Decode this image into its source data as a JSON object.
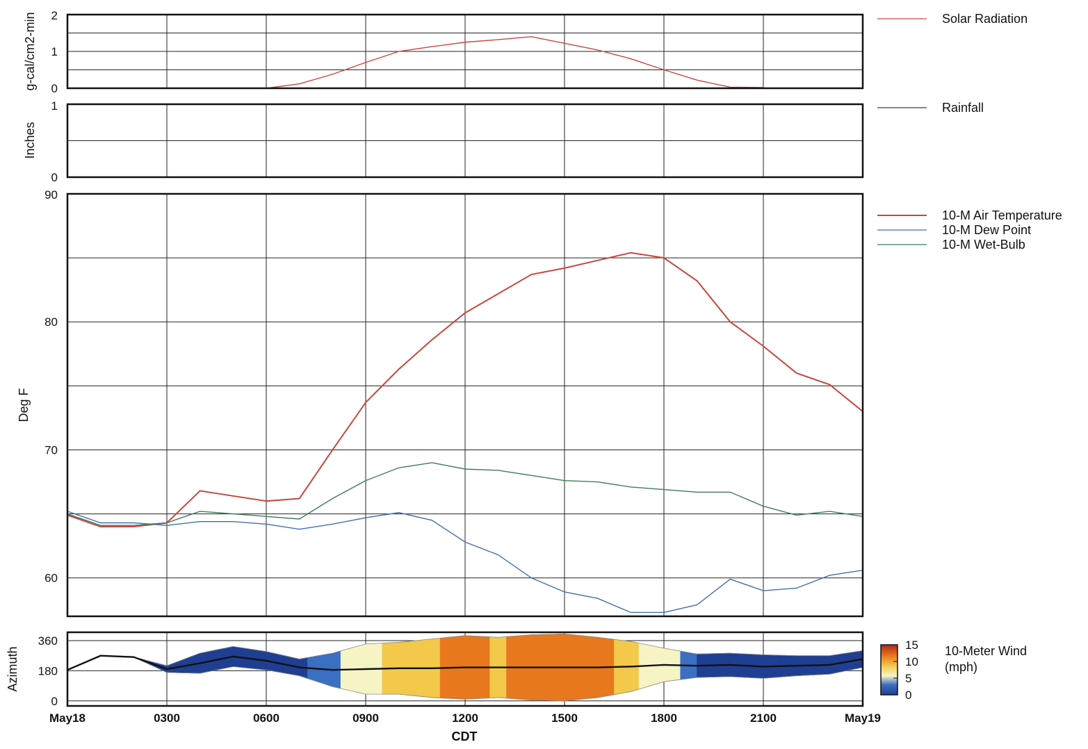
{
  "chart_data": [
    {
      "type": "line",
      "panel": "solar",
      "ylabel": "g-cal/cm2-min",
      "ylim": [
        0,
        2
      ],
      "yticks": [
        "0",
        "1",
        "2"
      ],
      "grid": true,
      "legend": "right",
      "series": [
        {
          "name": "Solar Radiation",
          "color": "#c8463e",
          "x": [
            6,
            7,
            8,
            9,
            10,
            11,
            12,
            13,
            14,
            15,
            16,
            17,
            18,
            19,
            20,
            21
          ],
          "values": [
            0,
            0.12,
            0.38,
            0.7,
            1.0,
            1.13,
            1.25,
            1.32,
            1.4,
            1.22,
            1.04,
            0.8,
            0.5,
            0.22,
            0.03,
            0.02
          ]
        }
      ]
    },
    {
      "type": "line",
      "panel": "rain",
      "ylabel": "Inches",
      "ylim": [
        0,
        1
      ],
      "yticks": [
        "0",
        "1"
      ],
      "grid": true,
      "legend": "right",
      "series": [
        {
          "name": "Rainfall",
          "color": "#2a3a6e",
          "x": [],
          "values": []
        }
      ]
    },
    {
      "type": "line",
      "panel": "temperature",
      "ylabel": "Deg F",
      "ylim": [
        57,
        90
      ],
      "yticks": [
        "60",
        "70",
        "80",
        "90"
      ],
      "grid": true,
      "legend": "top-right",
      "series": [
        {
          "name": "10-M Air Temperature",
          "color": "#c8463e",
          "x": [
            0,
            1,
            2,
            3,
            4,
            5,
            6,
            7,
            8,
            9,
            10,
            11,
            12,
            13,
            14,
            15,
            16,
            17,
            18,
            19,
            20,
            21,
            22,
            23,
            24
          ],
          "values": [
            64.9,
            64.0,
            64.0,
            64.3,
            66.8,
            66.4,
            66.0,
            66.2,
            70.0,
            73.7,
            76.3,
            78.6,
            80.7,
            82.2,
            83.7,
            84.2,
            84.8,
            85.4,
            85.0,
            83.2,
            80.0,
            78.1,
            76.0,
            75.1,
            73.0
          ]
        },
        {
          "name": "10-M Dew Point",
          "color": "#3f6fb0",
          "x": [
            0,
            1,
            2,
            3,
            4,
            5,
            6,
            7,
            8,
            9,
            10,
            11,
            12,
            13,
            14,
            15,
            16,
            17,
            18,
            19,
            20,
            21,
            22,
            23,
            24
          ],
          "values": [
            65.2,
            64.3,
            64.3,
            64.1,
            64.4,
            64.4,
            64.2,
            63.8,
            64.2,
            64.7,
            65.1,
            64.5,
            62.8,
            61.8,
            60.0,
            58.9,
            58.4,
            57.3,
            57.3,
            57.9,
            59.9,
            59.0,
            59.2,
            60.2,
            60.6
          ]
        },
        {
          "name": "10-M Wet-Bulb",
          "color": "#3d7d5a",
          "x": [
            0,
            1,
            2,
            3,
            4,
            5,
            6,
            7,
            8,
            9,
            10,
            11,
            12,
            13,
            14,
            15,
            16,
            17,
            18,
            19,
            20,
            21,
            22,
            23,
            24
          ],
          "values": [
            65.0,
            64.1,
            64.1,
            64.3,
            65.2,
            65.0,
            64.8,
            64.6,
            66.2,
            67.6,
            68.6,
            69.0,
            68.5,
            68.4,
            68.0,
            67.6,
            67.5,
            67.1,
            66.9,
            66.7,
            66.7,
            65.6,
            64.9,
            65.2,
            64.8
          ]
        }
      ]
    },
    {
      "type": "area",
      "panel": "wind",
      "ylabel": "Azimuth",
      "ylim": [
        -30,
        410
      ],
      "yticks": [
        "0",
        "180",
        "360"
      ],
      "grid": true,
      "legend": "right",
      "series": [
        {
          "name": "10-Meter Wind",
          "color": "#111111",
          "x": [
            0,
            1,
            2,
            3,
            4,
            5,
            6,
            7,
            8,
            9,
            10,
            11,
            12,
            13,
            14,
            15,
            16,
            17,
            18,
            19,
            20,
            21,
            22,
            23,
            24
          ],
          "values": [
            185,
            270,
            262,
            190,
            225,
            265,
            240,
            200,
            185,
            190,
            195,
            195,
            200,
            200,
            200,
            200,
            200,
            205,
            215,
            210,
            215,
            205,
            210,
            215,
            250
          ],
          "speed": [
            0,
            0,
            0,
            1,
            3,
            2,
            2,
            2,
            5,
            8,
            9,
            11,
            13,
            11,
            13,
            15,
            13,
            9,
            7,
            3,
            2,
            2,
            2,
            2,
            2
          ],
          "spread": [
            0,
            0,
            0,
            20,
            60,
            60,
            55,
            50,
            100,
            150,
            155,
            175,
            190,
            180,
            195,
            200,
            180,
            150,
            100,
            70,
            70,
            70,
            60,
            55,
            50
          ]
        }
      ]
    }
  ],
  "x_axis": {
    "title": "CDT",
    "ticks": [
      "May18",
      "0300",
      "0600",
      "0900",
      "1200",
      "1500",
      "1800",
      "2100",
      "May19"
    ]
  },
  "colorbar": {
    "ticks": [
      "15",
      "10",
      "5",
      "0"
    ],
    "colors": [
      "#1f3f92",
      "#3a6fc2",
      "#f6f4c4",
      "#f2c94a",
      "#e8781e",
      "#b4271c"
    ]
  },
  "legends": {
    "solar": "Solar Radiation",
    "rain": "Rainfall",
    "air": "10-M Air Temperature",
    "dew": "10-M Dew Point",
    "wet": "10-M Wet-Bulb",
    "wind_1": "10-Meter Wind",
    "wind_2": "(mph)"
  }
}
